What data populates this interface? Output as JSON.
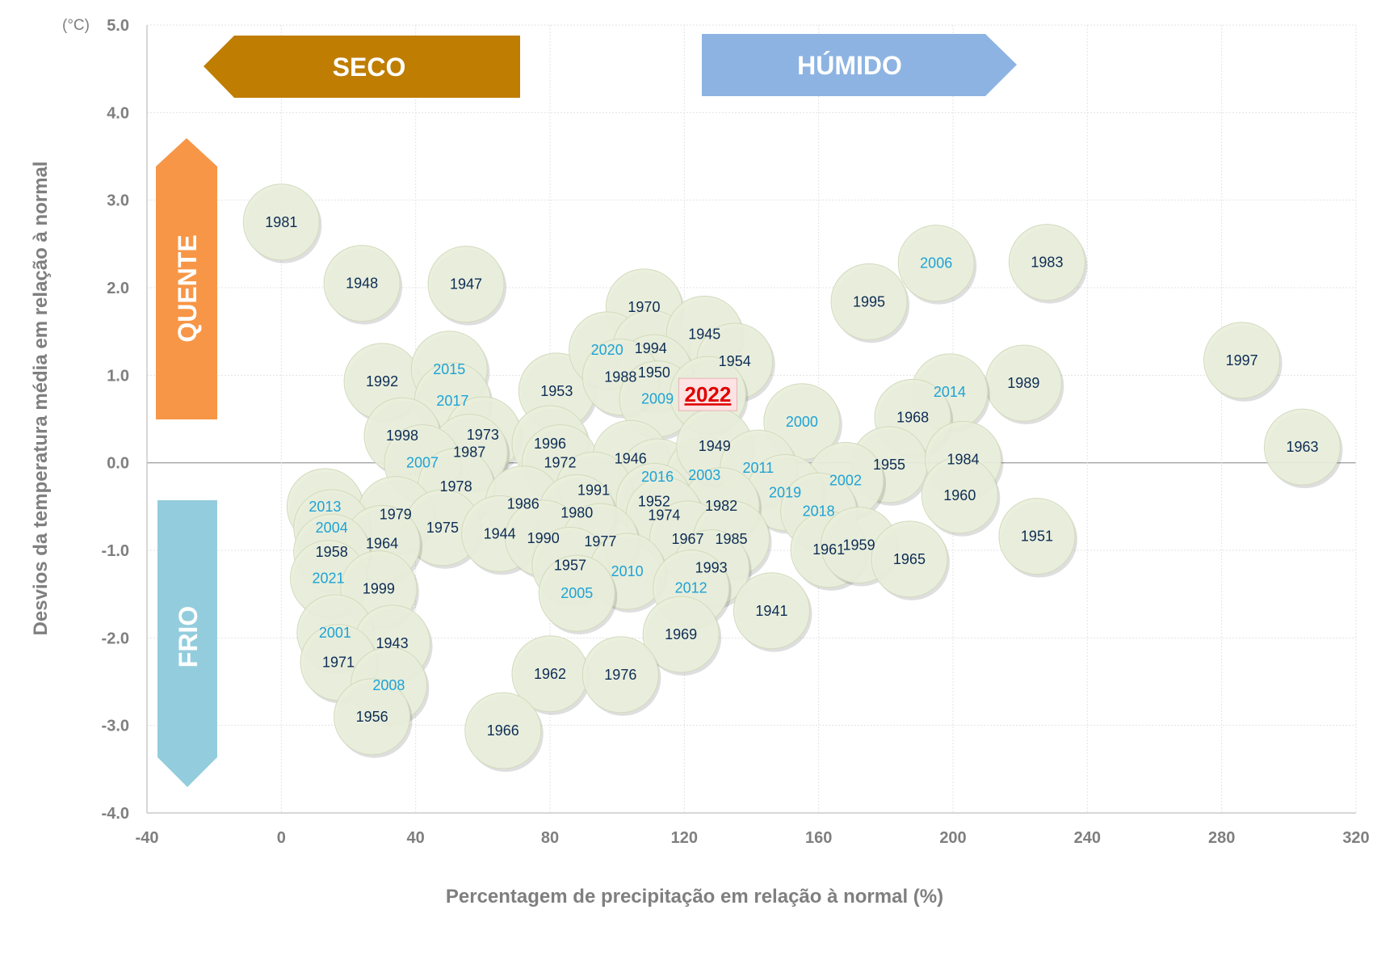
{
  "chart_data": {
    "type": "scatter",
    "unit_label": "(°C)",
    "xlabel": "Percentagem de precipitação em relação à normal (%)",
    "ylabel": "Desvios da temperatura média em relação à normal",
    "xlim": [
      -40,
      320
    ],
    "ylim": [
      -4.0,
      5.0
    ],
    "x_ticks": [
      "-40",
      "0",
      "40",
      "80",
      "120",
      "160",
      "200",
      "240",
      "280",
      "320"
    ],
    "y_ticks": [
      "5.0",
      "4.0",
      "3.0",
      "2.0",
      "1.0",
      "0.0",
      "-1.0",
      "-2.0",
      "-3.0",
      "-4.0"
    ],
    "grid": true,
    "arrows": {
      "dry": "SECO",
      "wet": "HÚMIDO",
      "hot": "QUENTE",
      "cold": "FRIO"
    },
    "highlight_year": "2022",
    "colors": {
      "bubble_fill": "#eaefdc",
      "bubble_stroke": "#d2dabd",
      "label_old": "#0d2c55",
      "label_recent": "#1fa2d6",
      "highlight": "#e00000",
      "dry_arrow": "#bf7d02",
      "wet_arrow": "#8db3e2",
      "hot_arrow": "#f79646",
      "cold_arrow": "#93cddd",
      "axis_text": "#7f7f7f"
    },
    "points": [
      {
        "year": "1981",
        "x": 0,
        "y": 2.75
      },
      {
        "year": "1948",
        "x": 24,
        "y": 2.05
      },
      {
        "year": "1947",
        "x": 55,
        "y": 2.04
      },
      {
        "year": "1992",
        "x": 30,
        "y": 0.93
      },
      {
        "year": "2015",
        "x": 50,
        "y": 1.07
      },
      {
        "year": "1953",
        "x": 82,
        "y": 0.82
      },
      {
        "year": "1970",
        "x": 108,
        "y": 1.78
      },
      {
        "year": "2020",
        "x": 97,
        "y": 1.29
      },
      {
        "year": "1994",
        "x": 110,
        "y": 1.31
      },
      {
        "year": "1945",
        "x": 126,
        "y": 1.47
      },
      {
        "year": "1954",
        "x": 135,
        "y": 1.16
      },
      {
        "year": "1950",
        "x": 111,
        "y": 1.03
      },
      {
        "year": "1988",
        "x": 101,
        "y": 0.98
      },
      {
        "year": "2009",
        "x": 112,
        "y": 0.73
      },
      {
        "year": "2022",
        "x": 127,
        "y": 0.78
      },
      {
        "year": "1995",
        "x": 175,
        "y": 1.84
      },
      {
        "year": "2006",
        "x": 195,
        "y": 2.28
      },
      {
        "year": "1983",
        "x": 228,
        "y": 2.29
      },
      {
        "year": "1997",
        "x": 286,
        "y": 1.17
      },
      {
        "year": "1989",
        "x": 221,
        "y": 0.91
      },
      {
        "year": "2014",
        "x": 199,
        "y": 0.81
      },
      {
        "year": "1968",
        "x": 188,
        "y": 0.52
      },
      {
        "year": "2000",
        "x": 155,
        "y": 0.47
      },
      {
        "year": "1963",
        "x": 304,
        "y": 0.18
      },
      {
        "year": "2017",
        "x": 51,
        "y": 0.71
      },
      {
        "year": "1973",
        "x": 60,
        "y": 0.32
      },
      {
        "year": "1998",
        "x": 36,
        "y": 0.31
      },
      {
        "year": "1987",
        "x": 56,
        "y": 0.12
      },
      {
        "year": "2007",
        "x": 42,
        "y": 0.0
      },
      {
        "year": "1996",
        "x": 80,
        "y": 0.22
      },
      {
        "year": "1972",
        "x": 83,
        "y": 0.0
      },
      {
        "year": "1946",
        "x": 104,
        "y": 0.05
      },
      {
        "year": "2016",
        "x": 112,
        "y": -0.16
      },
      {
        "year": "2003",
        "x": 126,
        "y": -0.14
      },
      {
        "year": "1949",
        "x": 129,
        "y": 0.19
      },
      {
        "year": "2011",
        "x": 142,
        "y": -0.06
      },
      {
        "year": "1955",
        "x": 181,
        "y": -0.02
      },
      {
        "year": "1984",
        "x": 203,
        "y": 0.04
      },
      {
        "year": "1960",
        "x": 202,
        "y": -0.37
      },
      {
        "year": "2002",
        "x": 168,
        "y": -0.2
      },
      {
        "year": "2019",
        "x": 150,
        "y": -0.34
      },
      {
        "year": "2018",
        "x": 160,
        "y": -0.55
      },
      {
        "year": "1978",
        "x": 52,
        "y": -0.27
      },
      {
        "year": "1991",
        "x": 93,
        "y": -0.31
      },
      {
        "year": "1952",
        "x": 111,
        "y": -0.44
      },
      {
        "year": "1982",
        "x": 131,
        "y": -0.49
      },
      {
        "year": "2013",
        "x": 13,
        "y": -0.5
      },
      {
        "year": "1979",
        "x": 34,
        "y": -0.59
      },
      {
        "year": "1986",
        "x": 72,
        "y": -0.47
      },
      {
        "year": "1980",
        "x": 88,
        "y": -0.57
      },
      {
        "year": "1974",
        "x": 114,
        "y": -0.6
      },
      {
        "year": "2004",
        "x": 15,
        "y": -0.74
      },
      {
        "year": "1975",
        "x": 48,
        "y": -0.74
      },
      {
        "year": "1944",
        "x": 65,
        "y": -0.81
      },
      {
        "year": "1990",
        "x": 78,
        "y": -0.86
      },
      {
        "year": "1977",
        "x": 95,
        "y": -0.9
      },
      {
        "year": "1967",
        "x": 121,
        "y": -0.87
      },
      {
        "year": "1985",
        "x": 134,
        "y": -0.87
      },
      {
        "year": "1964",
        "x": 30,
        "y": -0.92
      },
      {
        "year": "1958",
        "x": 15,
        "y": -1.02
      },
      {
        "year": "1961",
        "x": 163,
        "y": -0.99
      },
      {
        "year": "1959",
        "x": 172,
        "y": -0.94
      },
      {
        "year": "1965",
        "x": 187,
        "y": -1.1
      },
      {
        "year": "1951",
        "x": 225,
        "y": -0.84
      },
      {
        "year": "1957",
        "x": 86,
        "y": -1.17
      },
      {
        "year": "2010",
        "x": 103,
        "y": -1.24
      },
      {
        "year": "1993",
        "x": 128,
        "y": -1.2
      },
      {
        "year": "2012",
        "x": 122,
        "y": -1.43
      },
      {
        "year": "2021",
        "x": 14,
        "y": -1.32
      },
      {
        "year": "1999",
        "x": 29,
        "y": -1.44
      },
      {
        "year": "2005",
        "x": 88,
        "y": -1.49
      },
      {
        "year": "1941",
        "x": 146,
        "y": -1.69
      },
      {
        "year": "1969",
        "x": 119,
        "y": -1.96
      },
      {
        "year": "2001",
        "x": 16,
        "y": -1.94
      },
      {
        "year": "1943",
        "x": 33,
        "y": -2.06
      },
      {
        "year": "1971",
        "x": 17,
        "y": -2.28
      },
      {
        "year": "2008",
        "x": 32,
        "y": -2.54
      },
      {
        "year": "1962",
        "x": 80,
        "y": -2.41
      },
      {
        "year": "1976",
        "x": 101,
        "y": -2.42
      },
      {
        "year": "1956",
        "x": 27,
        "y": -2.9
      },
      {
        "year": "1966",
        "x": 66,
        "y": -3.06
      }
    ]
  }
}
